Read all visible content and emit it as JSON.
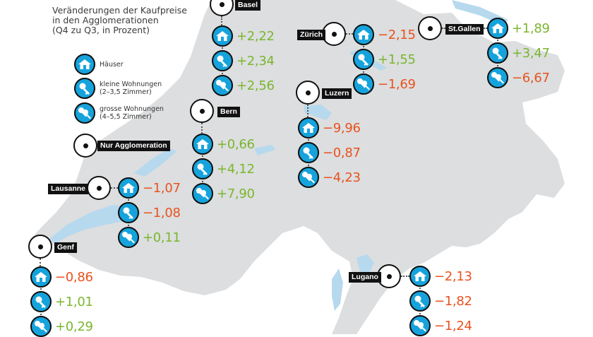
{
  "title": {
    "line1": "Veränderungen der Kaufpreise",
    "line2": "in den Agglomerationen",
    "line3": "(Q4 zu Q3, in Prozent)"
  },
  "legend": {
    "houses": "Häuser",
    "small_line1": "kleine Wohnungen",
    "small_line2": "(2–3,5 Zimmer)",
    "large_line1": "grosse Wohnungen",
    "large_line2": "(4–5,5 Zimmer)",
    "agglo": "Nur Agglomeration"
  },
  "colors": {
    "positive": "#7bb62e",
    "negative": "#e9521e",
    "icon_blue": "#16a3dc",
    "land": "#dcdedf",
    "water": "#b6d9ee"
  },
  "cities": {
    "basel": {
      "name": "Basel",
      "houses": "+2,22",
      "small": "+2,34",
      "large": "+2,56"
    },
    "zurich": {
      "name": "Zürich",
      "houses": "−2,15",
      "small": "+1,55",
      "large": "−1,69"
    },
    "stgallen": {
      "name": "St.Gallen",
      "houses": "+1,89",
      "small": "+3,47",
      "large": "−6,67"
    },
    "bern": {
      "name": "Bern",
      "houses": "+0,66",
      "small": "+4,12",
      "large": "+7,90"
    },
    "luzern": {
      "name": "Luzern",
      "houses": "−9,96",
      "small": "−0,87",
      "large": "−4,23"
    },
    "lausanne": {
      "name": "Lausanne",
      "houses": "−1,07",
      "small": "−1,08",
      "large": "+0,11"
    },
    "genf": {
      "name": "Genf",
      "houses": "−0,86",
      "small": "+1,01",
      "large": "+0,29"
    },
    "lugano": {
      "name": "Lugano",
      "houses": "−2,13",
      "small": "−1,82",
      "large": "−1,24"
    }
  }
}
